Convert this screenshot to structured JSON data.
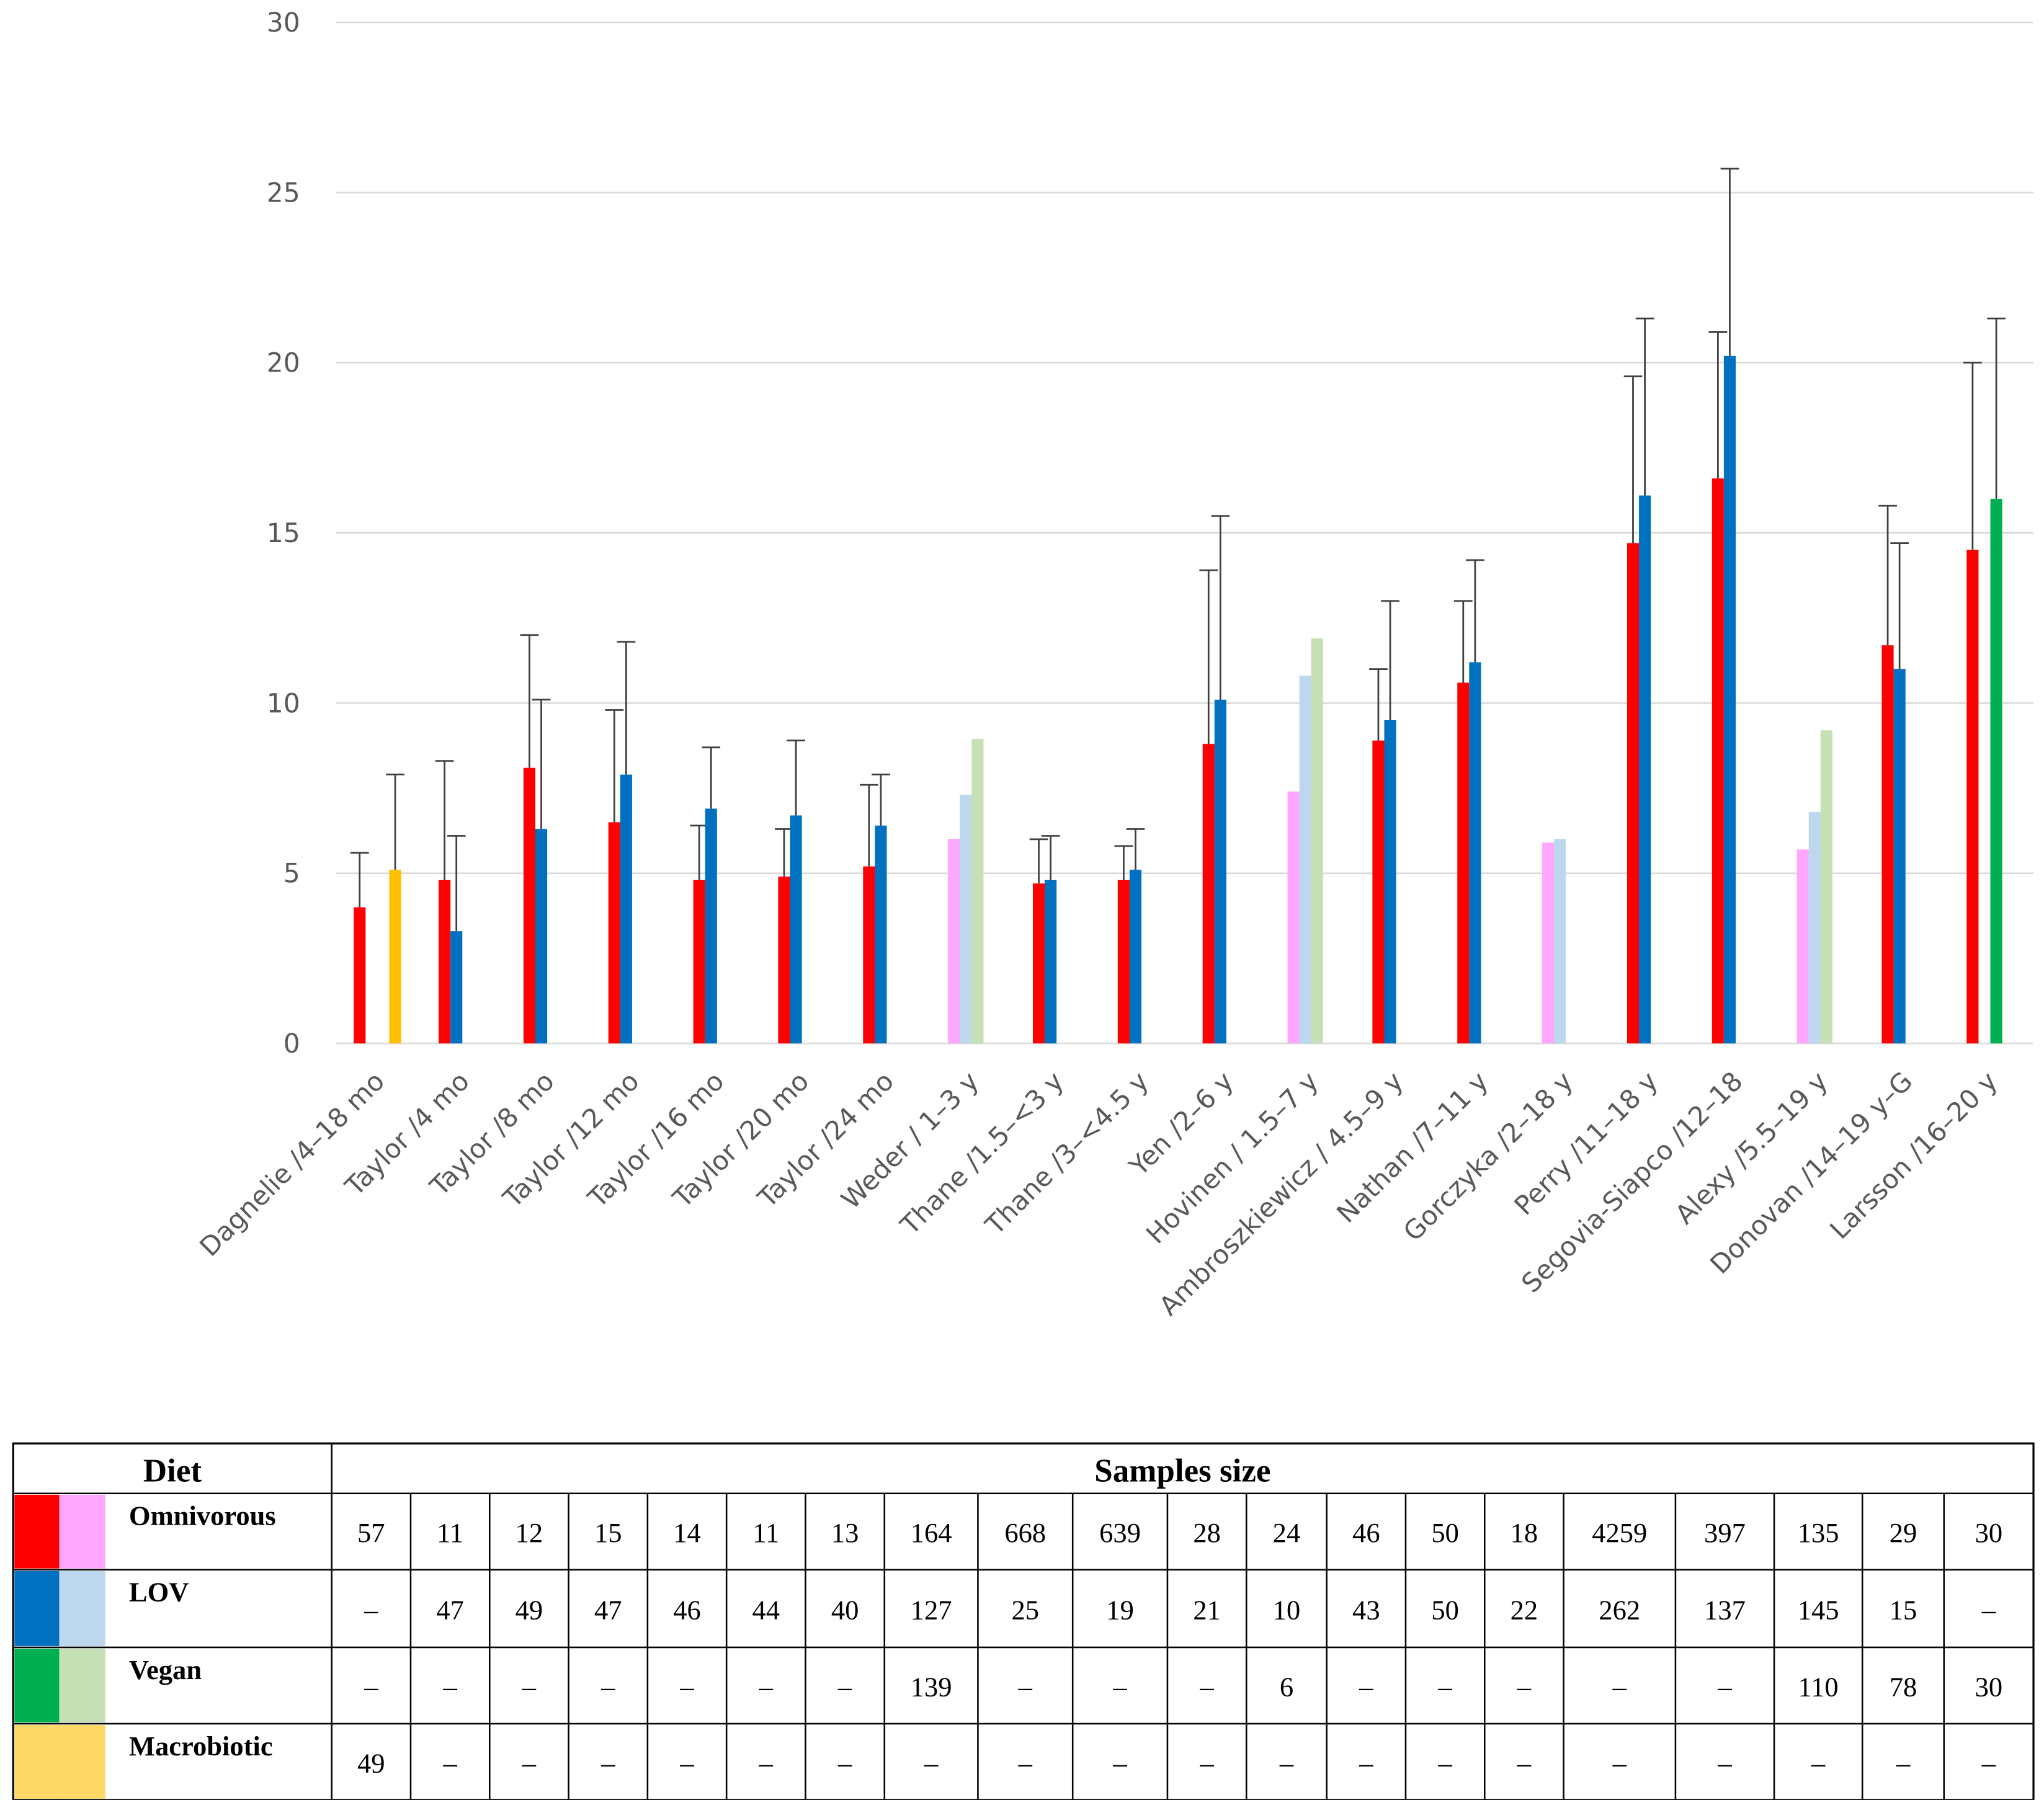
{
  "chart_data": {
    "type": "bar",
    "categories": [
      "Dagnelie /4–18 mo",
      "Taylor /4 mo",
      "Taylor /8 mo",
      "Taylor /12 mo",
      "Taylor /16 mo",
      "Taylor /20 mo",
      "Taylor /24 mo",
      "Weder / 1–3 y",
      "Thane /1.5–<3 y",
      "Thane /3–<4.5 y",
      "Yen /2–6 y",
      "Hovinen / 1.5–7 y",
      "Ambroszkiewicz / 4.5–9 y",
      "Nathan /7–11 y",
      "Gorczyka /2–18 y",
      "Perry /11–18 y",
      "Segovia-Siapco /12–18",
      "Alexy /5.5–19 y",
      "Donovan /14–19 y–G",
      "Larsson /16–20 y"
    ],
    "ylim": [
      0,
      30
    ],
    "yticks": [
      0,
      5,
      10,
      15,
      20,
      25,
      30
    ],
    "grid": true,
    "series": [
      {
        "name": "Omnivorous",
        "legend_colors": [
          "#ff0000",
          "#ffa6ff"
        ],
        "values": [
          4.0,
          4.8,
          8.1,
          6.5,
          4.8,
          4.9,
          5.2,
          6.0,
          4.7,
          4.8,
          8.8,
          7.4,
          8.9,
          10.6,
          5.9,
          14.7,
          16.6,
          5.7,
          11.7,
          14.5
        ],
        "errors": [
          1.6,
          3.5,
          3.9,
          3.3,
          1.6,
          1.4,
          2.4,
          null,
          1.3,
          1.0,
          5.1,
          null,
          2.1,
          2.4,
          null,
          4.9,
          4.3,
          null,
          4.1,
          5.5
        ],
        "colors": [
          "#ff0000",
          "#ff0000",
          "#ff0000",
          "#ff0000",
          "#ff0000",
          "#ff0000",
          "#ff0000",
          "#ffa6ff",
          "#ff0000",
          "#ff0000",
          "#ff0000",
          "#ffa6ff",
          "#ff0000",
          "#ff0000",
          "#ffa6ff",
          "#ff0000",
          "#ff0000",
          "#ffa6ff",
          "#ff0000",
          "#ff0000"
        ]
      },
      {
        "name": "LOV",
        "legend_colors": [
          "#0070c0",
          "#bdd7ee"
        ],
        "values": [
          null,
          3.3,
          6.3,
          7.9,
          6.9,
          6.7,
          6.4,
          7.3,
          4.8,
          5.1,
          10.1,
          10.8,
          9.5,
          11.2,
          6.0,
          16.1,
          20.2,
          6.8,
          11.0,
          null
        ],
        "errors": [
          null,
          2.8,
          3.8,
          3.9,
          1.8,
          2.2,
          1.5,
          null,
          1.3,
          1.2,
          5.4,
          null,
          3.5,
          3.0,
          null,
          5.2,
          5.5,
          null,
          3.7,
          null
        ],
        "colors": [
          null,
          "#0070c0",
          "#0070c0",
          "#0070c0",
          "#0070c0",
          "#0070c0",
          "#0070c0",
          "#bdd7ee",
          "#0070c0",
          "#0070c0",
          "#0070c0",
          "#bdd7ee",
          "#0070c0",
          "#0070c0",
          "#bdd7ee",
          "#0070c0",
          "#0070c0",
          "#bdd7ee",
          "#0070c0",
          null
        ]
      },
      {
        "name": "Vegan",
        "legend_colors": [
          "#00b050",
          "#c5e0b4"
        ],
        "values": [
          null,
          null,
          null,
          null,
          null,
          null,
          null,
          8.95,
          null,
          null,
          null,
          11.9,
          null,
          null,
          null,
          null,
          null,
          9.2,
          null,
          16.0
        ],
        "errors": [
          null,
          null,
          null,
          null,
          null,
          null,
          null,
          null,
          null,
          null,
          null,
          null,
          null,
          null,
          null,
          null,
          null,
          null,
          null,
          5.3
        ],
        "colors": [
          null,
          null,
          null,
          null,
          null,
          null,
          null,
          "#c5e0b4",
          null,
          null,
          null,
          "#c5e0b4",
          null,
          null,
          null,
          null,
          null,
          "#c5e0b4",
          null,
          "#00b050"
        ]
      },
      {
        "name": "Macrobiotic",
        "legend_colors": [
          "#ffd966",
          "#ffd966"
        ],
        "values": [
          5.1,
          null,
          null,
          null,
          null,
          null,
          null,
          null,
          null,
          null,
          null,
          null,
          null,
          null,
          null,
          null,
          null,
          null,
          null,
          null
        ],
        "errors": [
          2.8,
          null,
          null,
          null,
          null,
          null,
          null,
          null,
          null,
          null,
          null,
          null,
          null,
          null,
          null,
          null,
          null,
          null,
          null,
          null
        ],
        "colors": [
          "#ffc000",
          null,
          null,
          null,
          null,
          null,
          null,
          null,
          null,
          null,
          null,
          null,
          null,
          null,
          null,
          null,
          null,
          null,
          null,
          null
        ]
      }
    ]
  },
  "table": {
    "header": [
      "Diet",
      "Samples size"
    ],
    "rows": [
      [
        57,
        11,
        12,
        15,
        14,
        11,
        13,
        164,
        668,
        639,
        28,
        24,
        46,
        50,
        18,
        4259,
        397,
        135,
        29,
        30
      ],
      [
        "–",
        47,
        49,
        47,
        46,
        44,
        40,
        127,
        25,
        19,
        21,
        10,
        43,
        50,
        22,
        262,
        137,
        145,
        15,
        "–"
      ],
      [
        "–",
        "–",
        "–",
        "–",
        "–",
        "–",
        "–",
        139,
        "–",
        "–",
        "–",
        6,
        "–",
        "–",
        "–",
        "–",
        "–",
        110,
        78,
        30
      ],
      [
        49,
        "–",
        "–",
        "–",
        "–",
        "–",
        "–",
        "–",
        "–",
        "–",
        "–",
        "–",
        "–",
        "–",
        "–",
        "–",
        "–",
        "–",
        "–",
        "–"
      ]
    ]
  }
}
